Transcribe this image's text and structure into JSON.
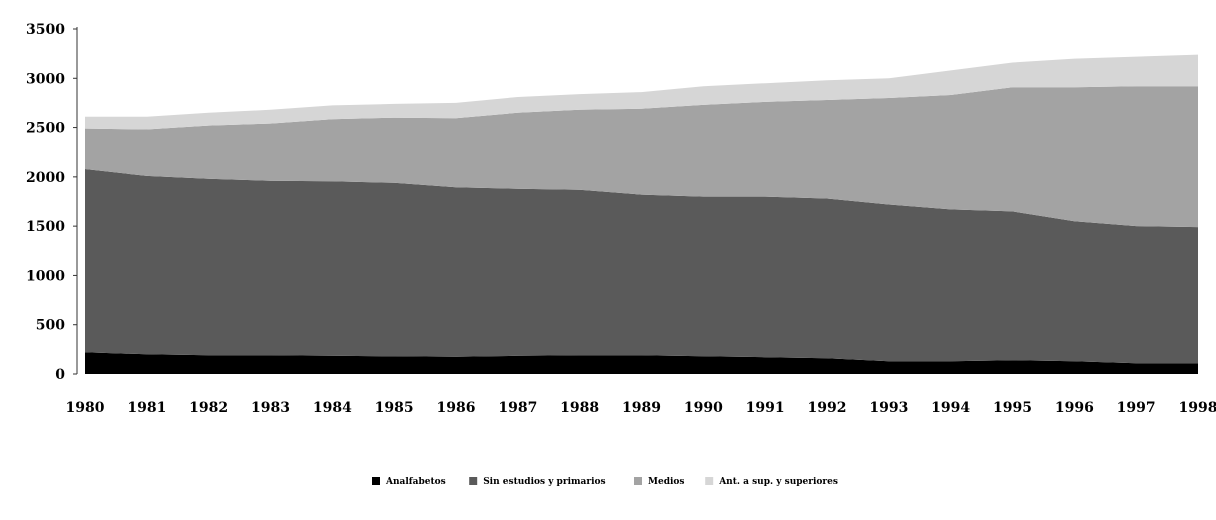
{
  "chart_data": {
    "type": "area",
    "stacked": true,
    "title": "",
    "xlabel": "",
    "ylabel": "",
    "ylim": [
      0,
      3500
    ],
    "y_ticks": [
      "0",
      "500",
      "1000",
      "1500",
      "2000",
      "2500",
      "3000",
      "3500"
    ],
    "x_tick_labels": [
      "1980",
      "1981",
      "1982",
      "1983",
      "1984",
      "1985",
      "1986",
      "1987",
      "1988",
      "1989",
      "1990",
      "1991",
      "1992",
      "1993",
      "1994",
      "1995",
      "1996",
      "1997",
      "1998"
    ],
    "grid": false,
    "legend_position": "bottom",
    "series": [
      {
        "name": "Analfabetos",
        "color": "#000000",
        "values": [
          220,
          200,
          190,
          190,
          185,
          180,
          175,
          185,
          190,
          190,
          180,
          170,
          160,
          130,
          130,
          140,
          130,
          110,
          110
        ]
      },
      {
        "name": "Sin estudios y primarios",
        "color": "#5a5a5a",
        "values": [
          1860,
          1810,
          1790,
          1770,
          1770,
          1760,
          1720,
          1695,
          1680,
          1630,
          1620,
          1630,
          1620,
          1590,
          1540,
          1510,
          1420,
          1390,
          1380
        ]
      },
      {
        "name": "Medios",
        "color": "#a3a3a3",
        "values": [
          410,
          470,
          540,
          580,
          630,
          660,
          700,
          770,
          810,
          870,
          930,
          960,
          1000,
          1080,
          1160,
          1260,
          1360,
          1420,
          1430
        ]
      },
      {
        "name": "Ant. a sup. y superiores",
        "color": "#d6d6d6",
        "values": [
          120,
          130,
          130,
          140,
          140,
          140,
          155,
          160,
          160,
          170,
          190,
          190,
          200,
          200,
          250,
          250,
          290,
          300,
          320
        ]
      }
    ]
  }
}
